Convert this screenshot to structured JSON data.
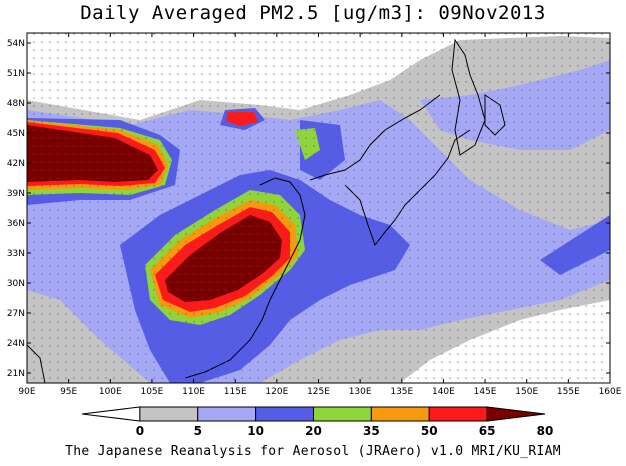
{
  "title": "Daily Averaged PM2.5 [ug/m3]: 09Nov2013",
  "footer": "The Japanese Reanalysis for Aerosol (JRAero) v1.0 MRI/KU_RIAM",
  "map": {
    "lon_range": [
      90,
      160
    ],
    "lat_range": [
      20,
      55
    ],
    "lon_ticks": [
      "90E",
      "95E",
      "100E",
      "105E",
      "110E",
      "115E",
      "120E",
      "125E",
      "130E",
      "135E",
      "140E",
      "145E",
      "150E",
      "155E",
      "160E"
    ],
    "lat_ticks": [
      "21N",
      "24N",
      "27N",
      "30N",
      "33N",
      "36N",
      "39N",
      "42N",
      "45N",
      "48N",
      "51N",
      "54N"
    ]
  },
  "colorbar": {
    "levels": [
      "0",
      "5",
      "10",
      "20",
      "35",
      "50",
      "65",
      "80"
    ],
    "colors": [
      "#ffffff",
      "#c4c4c4",
      "#a5a8f5",
      "#555ce6",
      "#8ed43a",
      "#f59a0c",
      "#ff1a1a",
      "#7a0000"
    ]
  }
}
